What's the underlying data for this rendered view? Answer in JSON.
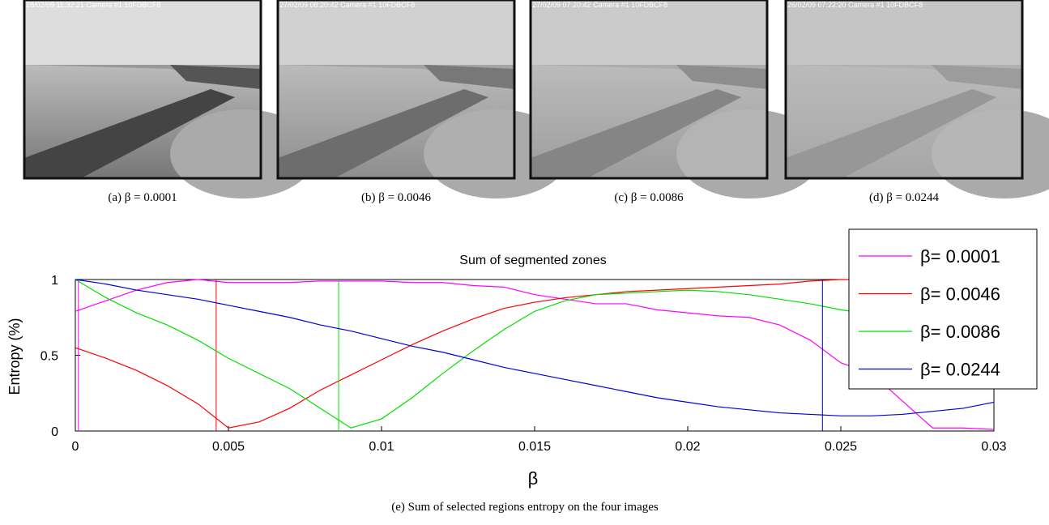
{
  "panels": [
    {
      "stamp": "28/02/09 11:32:21 Camera #1 10FDBCF8",
      "label": "(a)",
      "caption": "β = 0.0001"
    },
    {
      "stamp": "27/02/09 08:20:42 Camera #1 10FDBCF8",
      "label": "(b)",
      "caption": "β = 0.0046"
    },
    {
      "stamp": "27/02/09 07:20:42 Camera #1 10FDBCF8",
      "label": "(c)",
      "caption": "β = 0.0086"
    },
    {
      "stamp": "26/02/09 07:22:20 Camera #1 10FDBCF8",
      "label": "(d)",
      "caption": "β = 0.0244"
    }
  ],
  "chart_data": {
    "type": "line",
    "title": "Sum of segmented zones",
    "x_label": "β",
    "y_label": "Entropy (%)",
    "x": [
      0,
      0.001,
      0.002,
      0.003,
      0.004,
      0.005,
      0.006,
      0.007,
      0.008,
      0.009,
      0.01,
      0.011,
      0.012,
      0.013,
      0.014,
      0.015,
      0.016,
      0.017,
      0.018,
      0.019,
      0.02,
      0.021,
      0.022,
      0.023,
      0.024,
      0.025,
      0.026,
      0.027,
      0.028,
      0.029,
      0.03
    ],
    "xlim": [
      0,
      0.03
    ],
    "ylim": [
      0,
      1
    ],
    "xticks": [
      0,
      0.005,
      0.01,
      0.015,
      0.02,
      0.025,
      0.03
    ],
    "yticks": [
      0,
      0.5,
      1
    ],
    "legend": "upper right",
    "series": [
      {
        "name": "β= 0.0001",
        "color": "#ff00ff",
        "marker_x": 0.0001,
        "values": [
          0.79,
          0.86,
          0.93,
          0.98,
          1.0,
          0.98,
          0.98,
          0.98,
          0.99,
          0.99,
          0.99,
          0.98,
          0.98,
          0.96,
          0.95,
          0.9,
          0.87,
          0.84,
          0.84,
          0.8,
          0.78,
          0.76,
          0.75,
          0.7,
          0.6,
          0.45,
          0.38,
          0.2,
          0.02,
          0.02,
          0.01
        ]
      },
      {
        "name": "β= 0.0046",
        "color": "#ff0000",
        "marker_x": 0.0046,
        "values": [
          0.55,
          0.48,
          0.4,
          0.3,
          0.18,
          0.02,
          0.06,
          0.15,
          0.27,
          0.37,
          0.47,
          0.57,
          0.66,
          0.74,
          0.81,
          0.85,
          0.88,
          0.9,
          0.92,
          0.93,
          0.94,
          0.95,
          0.96,
          0.97,
          0.99,
          1.0,
          1.0,
          1.0,
          1.0,
          1.0,
          1.0
        ]
      },
      {
        "name": "β= 0.0086",
        "color": "#00e000",
        "marker_x": 0.0086,
        "values": [
          1.0,
          0.88,
          0.78,
          0.7,
          0.6,
          0.48,
          0.38,
          0.28,
          0.15,
          0.02,
          0.08,
          0.22,
          0.38,
          0.53,
          0.67,
          0.79,
          0.86,
          0.9,
          0.91,
          0.92,
          0.93,
          0.92,
          0.9,
          0.87,
          0.84,
          0.8,
          0.77,
          0.74,
          0.72,
          0.7,
          0.68
        ]
      },
      {
        "name": "β= 0.0244",
        "color": "#0000dd",
        "marker_x": 0.0244,
        "values": [
          1.0,
          0.97,
          0.93,
          0.9,
          0.87,
          0.83,
          0.79,
          0.75,
          0.7,
          0.66,
          0.61,
          0.56,
          0.52,
          0.47,
          0.42,
          0.38,
          0.34,
          0.3,
          0.26,
          0.22,
          0.19,
          0.16,
          0.14,
          0.12,
          0.11,
          0.1,
          0.1,
          0.11,
          0.13,
          0.15,
          0.19
        ]
      }
    ]
  },
  "caption": {
    "label": "(e)",
    "text": "Sum of selected regions entropy on the four images"
  }
}
